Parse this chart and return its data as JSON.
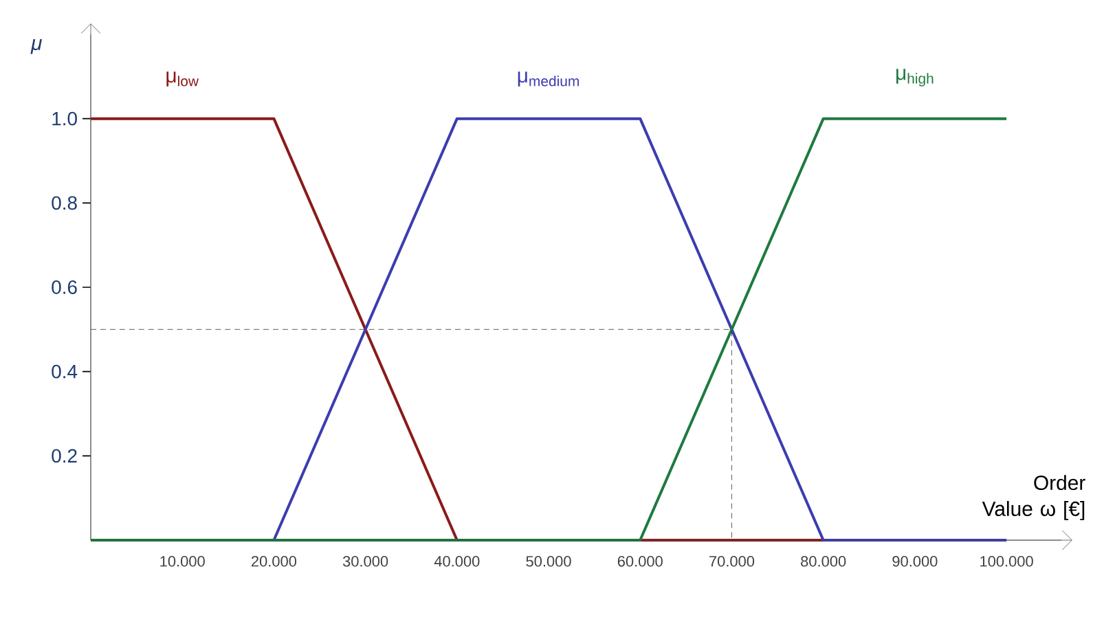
{
  "chart_data": {
    "type": "line",
    "xlabel": "Order Value ω [€]",
    "ylabel": "μ",
    "xlim": [
      0,
      106
    ],
    "ylim": [
      0,
      1.2
    ],
    "xticks": [
      {
        "value": 10,
        "label": "10.000"
      },
      {
        "value": 20,
        "label": "20.000"
      },
      {
        "value": 30,
        "label": "30.000"
      },
      {
        "value": 40,
        "label": "40.000"
      },
      {
        "value": 50,
        "label": "50.000"
      },
      {
        "value": 60,
        "label": "60.000"
      },
      {
        "value": 70,
        "label": "70.000"
      },
      {
        "value": 80,
        "label": "80.000"
      },
      {
        "value": 90,
        "label": "90.000"
      },
      {
        "value": 100,
        "label": "100.000"
      }
    ],
    "yticks": [
      0.2,
      0.4,
      0.6,
      0.8,
      {
        "value": 1,
        "label": "1.0"
      }
    ],
    "grid": false,
    "legend": false,
    "marker": "none",
    "line_style": "solid",
    "series": [
      {
        "name": "μ$_{low}$",
        "color": "#8b1a1a",
        "x": [
          0,
          20,
          40,
          100
        ],
        "values": [
          1,
          1,
          0,
          0
        ]
      },
      {
        "name": "μ$_{medium}$",
        "color": "#3c3cb0",
        "x": [
          0,
          20,
          40,
          60,
          80,
          100
        ],
        "values": [
          0,
          0,
          1,
          1,
          0,
          0
        ]
      },
      {
        "name": "μ$_{high}$",
        "color": "#1e7a40",
        "x": [
          0,
          60,
          80,
          100
        ],
        "values": [
          0,
          0,
          1,
          1
        ]
      },
      {
        "color": "#333333",
        "line_style": "dashed",
        "x": [
          0,
          70,
          70
        ],
        "values": [
          0.5,
          0.5,
          0
        ]
      }
    ]
  }
}
